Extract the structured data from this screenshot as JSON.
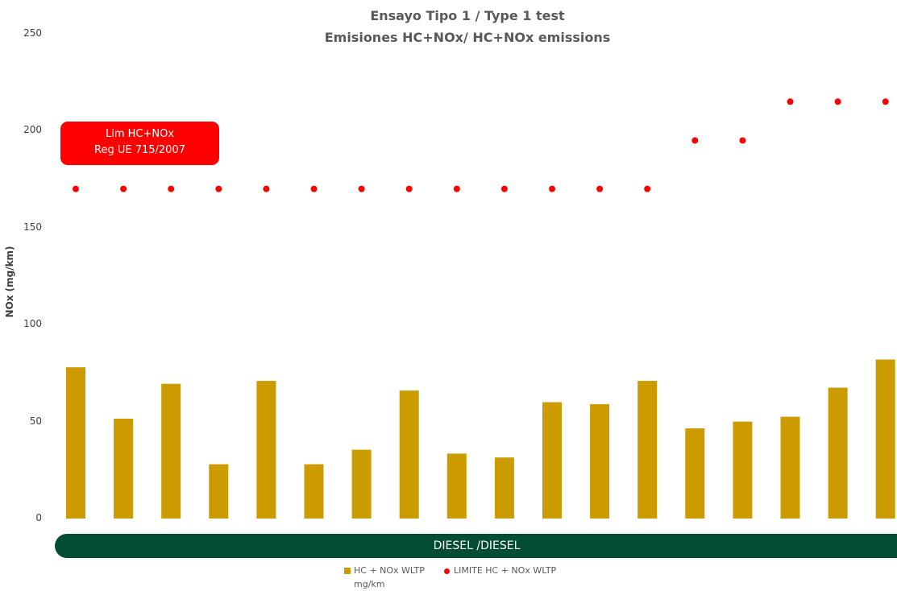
{
  "chart_data": {
    "type": "bar",
    "title": "Ensayo Tipo 1 / Type 1 test",
    "subtitle": "Emisiones HC+NOx/  HC+NOx emissions",
    "ylabel": "NOx (mg/km)",
    "ylim": [
      0,
      250
    ],
    "yticks": [
      "0",
      "50",
      "100",
      "150",
      "200",
      "250"
    ],
    "series": [
      {
        "name": "HC + NOx WLTP mg/km",
        "type": "bar",
        "color": "#cc9b00",
        "values": [
          78,
          51.5,
          69.5,
          28,
          71,
          28,
          35.5,
          66,
          33.5,
          31.5,
          60,
          59,
          71,
          46.5,
          50,
          52.5,
          67.5,
          82
        ]
      },
      {
        "name": "LIMITE HC + NOx WLTP",
        "type": "scatter",
        "color": "#ff0000",
        "values": [
          170,
          170,
          170,
          170,
          170,
          170,
          170,
          170,
          170,
          170,
          170,
          170,
          170,
          195,
          195,
          215,
          215,
          215
        ]
      }
    ],
    "annotation": {
      "line1": "Lim  HC+NOx",
      "line2": "Reg UE 715/2007"
    },
    "category_band": "DIESEL /DIESEL",
    "legend": {
      "bar_label_line1": "HC + NOx WLTP",
      "bar_label_line2": "mg/km",
      "dot_label": "LIMITE HC + NOx WLTP"
    },
    "grid": false
  }
}
